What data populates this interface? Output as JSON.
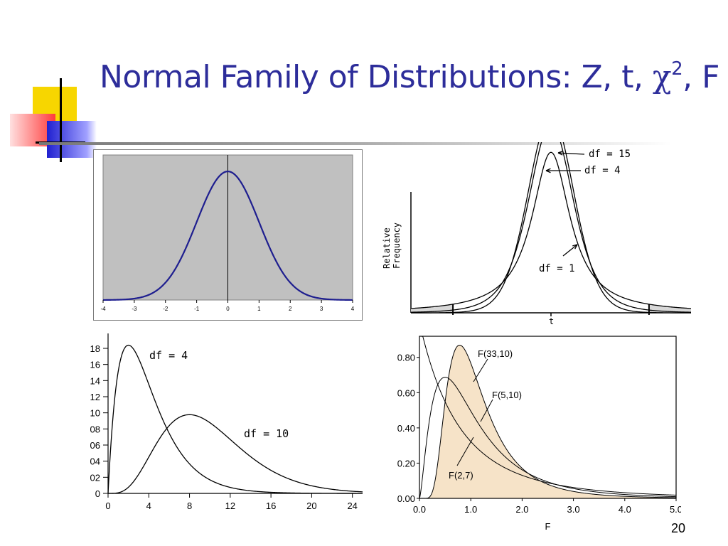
{
  "slide": {
    "title_main": "Normal Family of Distributions: Z, t, ",
    "title_chi": "χ",
    "title_sup": "2",
    "title_tail": ", F",
    "page_number": "20"
  },
  "colors": {
    "title": "#2d2d9a",
    "deco_yellow": "#f7d600",
    "deco_red": "#ff4a4a",
    "deco_blue": "#2a2ad0",
    "z_curve": "#1e1e8f",
    "z_plot_bg": "#c0c0c0",
    "f_fill": "#f6e3c8"
  },
  "chart_data": [
    {
      "id": "z",
      "type": "line",
      "x_ticks": [
        "-4",
        "-3",
        "-2",
        "-1",
        "0",
        "1",
        "2",
        "3",
        "4"
      ],
      "xlim": [
        -4,
        4
      ],
      "ylim": [
        0,
        0.45
      ],
      "grid": false,
      "series": [
        {
          "function": "standard-normal-pdf"
        }
      ]
    },
    {
      "id": "t",
      "type": "line",
      "xlabel": "t",
      "ylabel_lines": [
        "Relative",
        "Frequency"
      ],
      "xlim": [
        -6,
        6
      ],
      "series": [
        {
          "name": "df = 15",
          "df": 15
        },
        {
          "name": "df = 4",
          "df": 4
        },
        {
          "name": "df = 1",
          "df": 1
        }
      ]
    },
    {
      "id": "chi2",
      "type": "line",
      "x_ticks": [
        "0",
        "4",
        "8",
        "12",
        "16",
        "20",
        "24"
      ],
      "y_ticks": [
        "0",
        "02",
        "04",
        "06",
        "08",
        "10",
        "12",
        "14",
        "16",
        "18"
      ],
      "xlim": [
        0,
        25
      ],
      "ylim": [
        0,
        0.195
      ],
      "series": [
        {
          "name": "df = 4",
          "df": 4
        },
        {
          "name": "df = 10",
          "df": 10
        }
      ]
    },
    {
      "id": "f",
      "type": "area",
      "xlabel": "F",
      "x_ticks": [
        "0.0",
        "1.0",
        "2.0",
        "3.0",
        "4.0",
        "5.0"
      ],
      "y_ticks": [
        "0.00",
        "0.20",
        "0.40",
        "0.60",
        "0.80"
      ],
      "xlim": [
        0,
        5
      ],
      "ylim": [
        0,
        0.92
      ],
      "series": [
        {
          "name": "F(33,10)",
          "d1": 33,
          "d2": 10,
          "filled": true
        },
        {
          "name": "F(5,10)",
          "d1": 5,
          "d2": 10
        },
        {
          "name": "F(2,7)",
          "d1": 2,
          "d2": 7
        }
      ]
    }
  ]
}
